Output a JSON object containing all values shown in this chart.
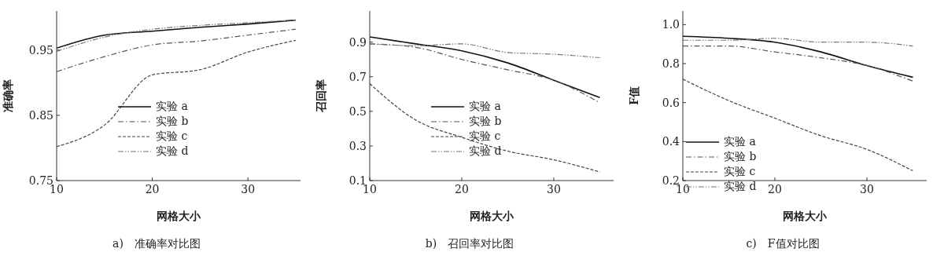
{
  "chart_data": [
    {
      "type": "line",
      "title": "a)　准确率对比图",
      "xlabel": "网格大小",
      "ylabel": "准确率",
      "x": [
        10,
        15,
        20,
        25,
        30,
        35
      ],
      "xlim": [
        10,
        35.5
      ],
      "xticks": [
        10,
        20,
        30
      ],
      "ylim": [
        0.75,
        1.01
      ],
      "yticks": [
        0.75,
        0.85,
        0.95
      ],
      "grid": false,
      "legend": "center",
      "marker": "none",
      "series": [
        {
          "name": "实验 a",
          "color": "#111111",
          "line_style": "solid",
          "values": [
            0.953,
            0.973,
            0.979,
            0.985,
            0.99,
            0.996
          ]
        },
        {
          "name": "实验 b",
          "color": "#555555",
          "line_style": "dashdot",
          "values": [
            0.917,
            0.94,
            0.958,
            0.964,
            0.973,
            0.982
          ]
        },
        {
          "name": "实验 c",
          "color": "#444444",
          "line_style": "dashed",
          "values": [
            0.802,
            0.835,
            0.912,
            0.92,
            0.947,
            0.965
          ]
        },
        {
          "name": "实验 d",
          "color": "#777777",
          "line_style": "dashdotdot",
          "values": [
            0.948,
            0.97,
            0.982,
            0.988,
            0.992,
            0.996
          ]
        }
      ]
    },
    {
      "type": "line",
      "title": "b)　召回率对比图",
      "xlabel": "网格大小",
      "ylabel": "召回率",
      "x": [
        10,
        15,
        20,
        25,
        30,
        35
      ],
      "xlim": [
        10,
        36.5
      ],
      "xticks": [
        10,
        20,
        30
      ],
      "ylim": [
        0.1,
        1.08
      ],
      "yticks": [
        0.1,
        0.3,
        0.5,
        0.7,
        0.9
      ],
      "grid": false,
      "legend": "center",
      "marker": "none",
      "series": [
        {
          "name": "实验 a",
          "color": "#111111",
          "line_style": "solid",
          "values": [
            0.93,
            0.89,
            0.85,
            0.78,
            0.68,
            0.58
          ]
        },
        {
          "name": "实验 b",
          "color": "#555555",
          "line_style": "dashdot",
          "values": [
            0.89,
            0.87,
            0.8,
            0.74,
            0.68,
            0.55
          ]
        },
        {
          "name": "实验 c",
          "color": "#444444",
          "line_style": "dashed",
          "values": [
            0.66,
            0.45,
            0.35,
            0.27,
            0.22,
            0.15
          ]
        },
        {
          "name": "实验 d",
          "color": "#777777",
          "line_style": "dashdotdot",
          "values": [
            0.89,
            0.88,
            0.89,
            0.84,
            0.83,
            0.81
          ]
        }
      ]
    },
    {
      "type": "line",
      "title": "c)　F值对比图",
      "xlabel": "网格大小",
      "ylabel": "F值",
      "x": [
        10,
        15,
        20,
        25,
        30,
        35
      ],
      "xlim": [
        10,
        36.5
      ],
      "xticks": [
        10,
        20,
        30
      ],
      "ylim": [
        0.2,
        1.07
      ],
      "yticks": [
        0.2,
        0.4,
        0.6,
        0.8,
        {
          "value": 1,
          "label": "1.0"
        }
      ],
      "grid": false,
      "legend": "bottom left",
      "marker": "none",
      "series": [
        {
          "name": "实验 a",
          "color": "#111111",
          "line_style": "solid",
          "values": [
            0.94,
            0.93,
            0.91,
            0.86,
            0.79,
            0.73
          ]
        },
        {
          "name": "实验 b",
          "color": "#555555",
          "line_style": "dashdot",
          "values": [
            0.89,
            0.89,
            0.86,
            0.83,
            0.79,
            0.71
          ]
        },
        {
          "name": "实验 c",
          "color": "#444444",
          "line_style": "dashed",
          "values": [
            0.72,
            0.61,
            0.52,
            0.43,
            0.36,
            0.25
          ]
        },
        {
          "name": "实验 d",
          "color": "#777777",
          "line_style": "dashdotdot",
          "values": [
            0.92,
            0.92,
            0.93,
            0.91,
            0.91,
            0.89
          ]
        }
      ]
    }
  ]
}
